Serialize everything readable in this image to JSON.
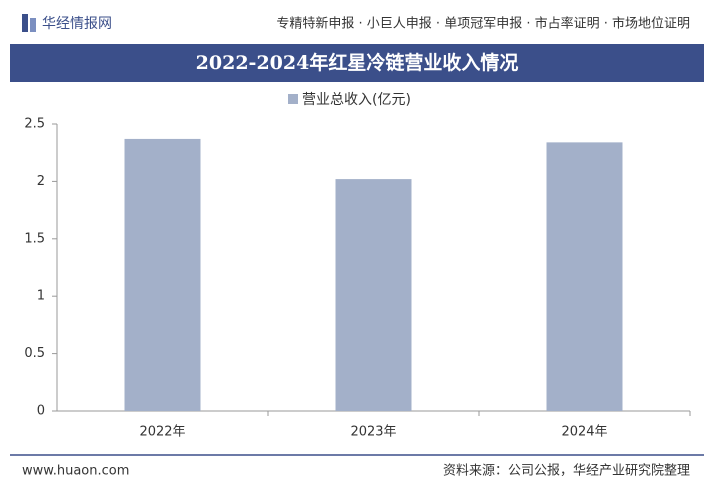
{
  "header": {
    "logo": "华经情报网",
    "services": "专精特新申报 · 小巨人申报 · 单项冠军申报 · 市占率证明 · 市场地位证明"
  },
  "chart_data": {
    "type": "bar",
    "title": "2022-2024年红星冷链营业收入情况",
    "categories": [
      "2022年",
      "2023年",
      "2024年"
    ],
    "series": [
      {
        "name": "营业总收入(亿元)",
        "color": "#a3b0c9",
        "values": [
          2.37,
          2.02,
          2.34
        ]
      }
    ],
    "ylim": [
      0,
      2.5
    ],
    "yticks": [
      0,
      0.5,
      1,
      1.5,
      2,
      2.5
    ],
    "grid": false,
    "legend": "top"
  },
  "footer": {
    "website": "www.huaon.com",
    "source": "资料来源：公司公报，华经产业研究院整理"
  }
}
